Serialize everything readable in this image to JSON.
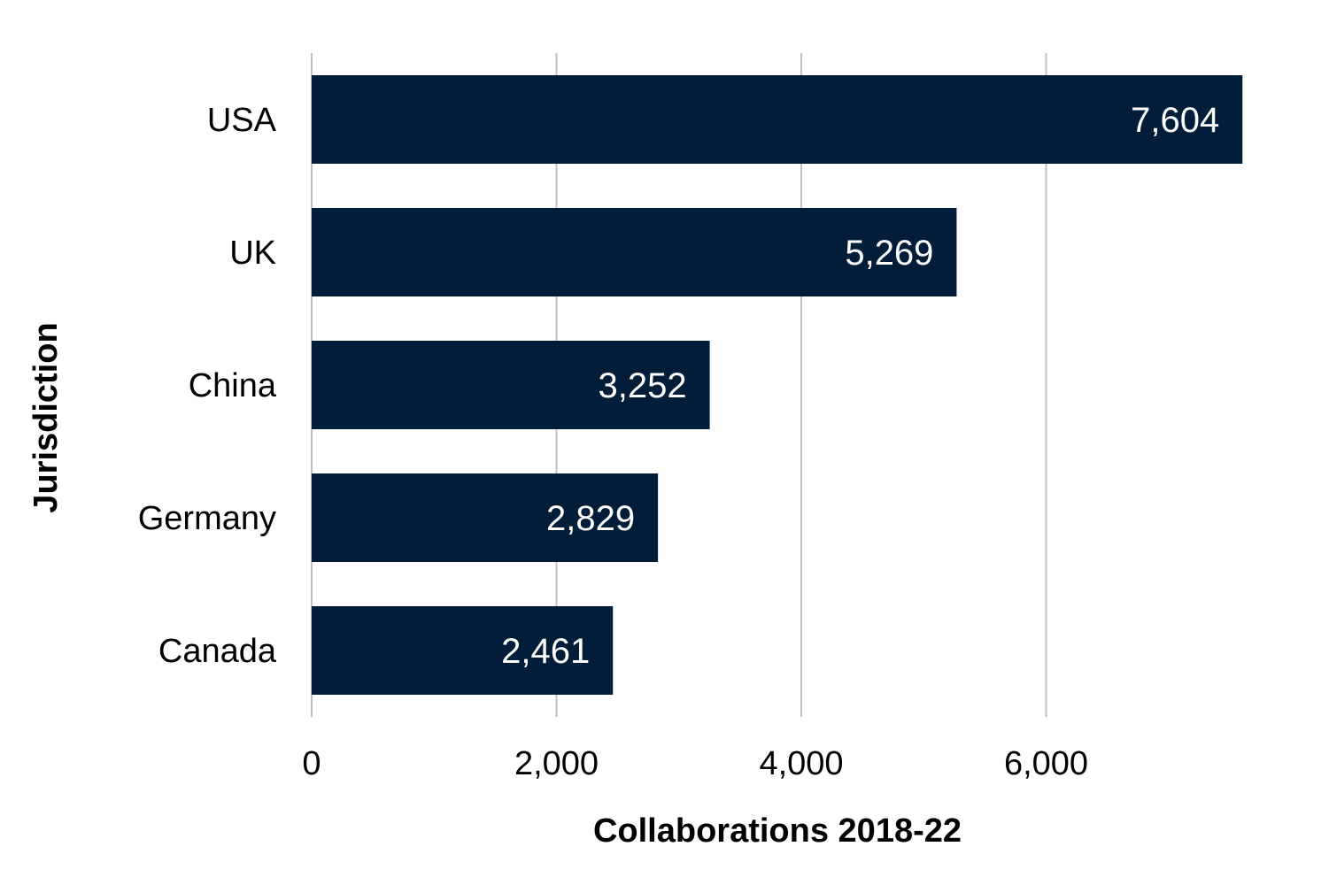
{
  "chart_data": {
    "type": "bar",
    "orientation": "horizontal",
    "categories": [
      "USA",
      "UK",
      "China",
      "Germany",
      "Canada"
    ],
    "values": [
      7604,
      5269,
      3252,
      2829,
      2461
    ],
    "data_labels": [
      "7,604",
      "5,269",
      "3,252",
      "2,829",
      "2,461"
    ],
    "title": "",
    "xlabel": "Collaborations 2018-22",
    "ylabel": "Jurisdiction",
    "xlim": [
      0,
      8000
    ],
    "xticks": [
      0,
      2000,
      4000,
      6000
    ],
    "xtick_labels": [
      "0",
      "2,000",
      "4,000",
      "6,000"
    ],
    "grid": true,
    "legend": "none",
    "bar_color": "#021d39",
    "grid_color": "#c0c0c0"
  }
}
